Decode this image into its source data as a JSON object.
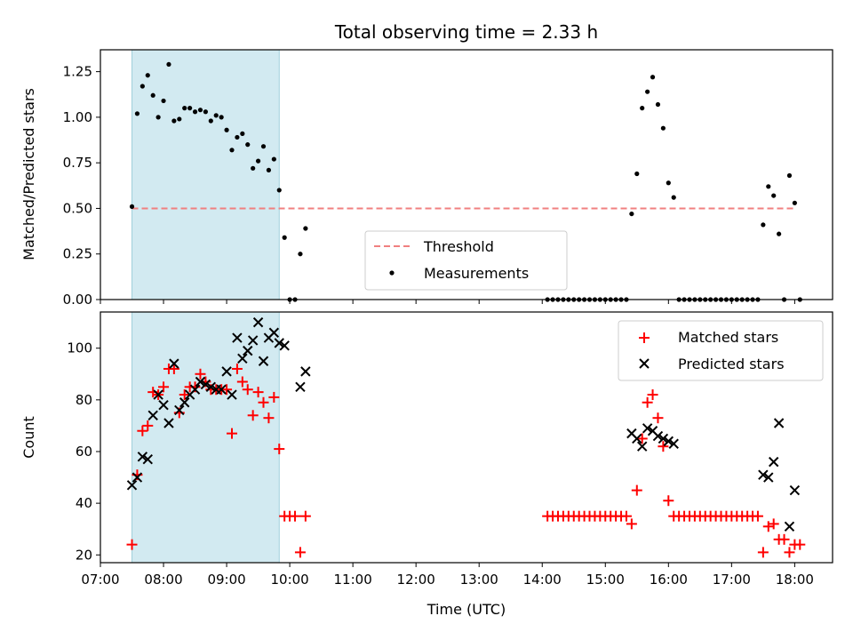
{
  "chart_data": [
    {
      "type": "scatter",
      "title": "Total observing time = 2.33 h",
      "xlabel": "",
      "ylabel": "Matched/Predicted stars",
      "xlim": [
        "07:00",
        "18:36"
      ],
      "ylim": [
        0,
        1.37
      ],
      "yticks": [
        "0.00",
        "0.25",
        "0.50",
        "0.75",
        "1.00",
        "1.25"
      ],
      "shaded_interval": [
        "07:30",
        "09:50"
      ],
      "threshold": {
        "name": "Threshold",
        "value": 0.5,
        "x": [
          "07:30",
          "18:00"
        ],
        "color": "#f08080"
      },
      "legend": {
        "placement": "lower-center",
        "entries": [
          "Threshold",
          "Measurements"
        ]
      },
      "series": [
        {
          "name": "Measurements",
          "color": "#000000",
          "points": [
            [
              "07:30",
              0.51
            ],
            [
              "07:35",
              1.02
            ],
            [
              "07:40",
              1.17
            ],
            [
              "07:45",
              1.23
            ],
            [
              "07:50",
              1.12
            ],
            [
              "07:55",
              1.0
            ],
            [
              "08:00",
              1.09
            ],
            [
              "08:05",
              1.29
            ],
            [
              "08:10",
              0.98
            ],
            [
              "08:15",
              0.99
            ],
            [
              "08:20",
              1.05
            ],
            [
              "08:25",
              1.05
            ],
            [
              "08:30",
              1.03
            ],
            [
              "08:35",
              1.04
            ],
            [
              "08:40",
              1.03
            ],
            [
              "08:45",
              0.98
            ],
            [
              "08:50",
              1.01
            ],
            [
              "08:55",
              1.0
            ],
            [
              "09:00",
              0.93
            ],
            [
              "09:05",
              0.82
            ],
            [
              "09:10",
              0.89
            ],
            [
              "09:15",
              0.91
            ],
            [
              "09:20",
              0.85
            ],
            [
              "09:25",
              0.72
            ],
            [
              "09:30",
              0.76
            ],
            [
              "09:35",
              0.84
            ],
            [
              "09:40",
              0.71
            ],
            [
              "09:45",
              0.77
            ],
            [
              "09:50",
              0.6
            ],
            [
              "09:55",
              0.34
            ],
            [
              "10:00",
              0.0
            ],
            [
              "10:05",
              0.0
            ],
            [
              "10:10",
              0.25
            ],
            [
              "10:15",
              0.39
            ],
            [
              "14:05",
              0.0
            ],
            [
              "14:10",
              0.0
            ],
            [
              "14:15",
              0.0
            ],
            [
              "14:20",
              0.0
            ],
            [
              "14:25",
              0.0
            ],
            [
              "14:30",
              0.0
            ],
            [
              "14:35",
              0.0
            ],
            [
              "14:40",
              0.0
            ],
            [
              "14:45",
              0.0
            ],
            [
              "14:50",
              0.0
            ],
            [
              "14:55",
              0.0
            ],
            [
              "15:00",
              0.0
            ],
            [
              "15:05",
              0.0
            ],
            [
              "15:10",
              0.0
            ],
            [
              "15:15",
              0.0
            ],
            [
              "15:20",
              0.0
            ],
            [
              "15:25",
              0.47
            ],
            [
              "15:30",
              0.69
            ],
            [
              "15:35",
              1.05
            ],
            [
              "15:40",
              1.14
            ],
            [
              "15:45",
              1.22
            ],
            [
              "15:50",
              1.07
            ],
            [
              "15:55",
              0.94
            ],
            [
              "16:00",
              0.64
            ],
            [
              "16:05",
              0.56
            ],
            [
              "16:10",
              0.0
            ],
            [
              "16:15",
              0.0
            ],
            [
              "16:20",
              0.0
            ],
            [
              "16:25",
              0.0
            ],
            [
              "16:30",
              0.0
            ],
            [
              "16:35",
              0.0
            ],
            [
              "16:40",
              0.0
            ],
            [
              "16:45",
              0.0
            ],
            [
              "16:50",
              0.0
            ],
            [
              "16:55",
              0.0
            ],
            [
              "17:00",
              0.0
            ],
            [
              "17:05",
              0.0
            ],
            [
              "17:10",
              0.0
            ],
            [
              "17:15",
              0.0
            ],
            [
              "17:20",
              0.0
            ],
            [
              "17:25",
              0.0
            ],
            [
              "17:30",
              0.41
            ],
            [
              "17:35",
              0.62
            ],
            [
              "17:40",
              0.57
            ],
            [
              "17:45",
              0.36
            ],
            [
              "17:50",
              0.0
            ],
            [
              "17:55",
              0.68
            ],
            [
              "18:00",
              0.53
            ],
            [
              "18:05",
              0.0
            ]
          ]
        }
      ]
    },
    {
      "type": "scatter",
      "title": "",
      "xlabel": "Time (UTC)",
      "ylabel": "Count",
      "xlim": [
        "07:00",
        "18:36"
      ],
      "ylim": [
        17,
        114
      ],
      "xticks": [
        "07:00",
        "08:00",
        "09:00",
        "10:00",
        "11:00",
        "12:00",
        "13:00",
        "14:00",
        "15:00",
        "16:00",
        "17:00",
        "18:00"
      ],
      "yticks": [
        "20",
        "40",
        "60",
        "80",
        "100"
      ],
      "shaded_interval": [
        "07:30",
        "09:50"
      ],
      "legend": {
        "placement": "upper-right",
        "entries": [
          "Matched stars",
          "Predicted stars"
        ]
      },
      "series": [
        {
          "name": "Matched stars",
          "marker": "plus",
          "color": "#ff0000",
          "points": [
            [
              "07:30",
              24
            ],
            [
              "07:35",
              51
            ],
            [
              "07:40",
              68
            ],
            [
              "07:45",
              70
            ],
            [
              "07:50",
              83
            ],
            [
              "07:55",
              82
            ],
            [
              "08:00",
              85
            ],
            [
              "08:05",
              92
            ],
            [
              "08:10",
              92
            ],
            [
              "08:15",
              75
            ],
            [
              "08:20",
              82
            ],
            [
              "08:25",
              85
            ],
            [
              "08:30",
              85
            ],
            [
              "08:35",
              90
            ],
            [
              "08:40",
              87
            ],
            [
              "08:45",
              84
            ],
            [
              "08:50",
              84
            ],
            [
              "08:55",
              84
            ],
            [
              "09:00",
              84
            ],
            [
              "09:05",
              67
            ],
            [
              "09:10",
              92
            ],
            [
              "09:15",
              87
            ],
            [
              "09:20",
              84
            ],
            [
              "09:25",
              74
            ],
            [
              "09:30",
              83
            ],
            [
              "09:35",
              79
            ],
            [
              "09:40",
              73
            ],
            [
              "09:45",
              81
            ],
            [
              "09:50",
              61
            ],
            [
              "09:55",
              35
            ],
            [
              "10:00",
              35
            ],
            [
              "10:05",
              35
            ],
            [
              "10:10",
              21
            ],
            [
              "10:15",
              35
            ],
            [
              "14:05",
              35
            ],
            [
              "14:10",
              35
            ],
            [
              "14:15",
              35
            ],
            [
              "14:20",
              35
            ],
            [
              "14:25",
              35
            ],
            [
              "14:30",
              35
            ],
            [
              "14:35",
              35
            ],
            [
              "14:40",
              35
            ],
            [
              "14:45",
              35
            ],
            [
              "14:50",
              35
            ],
            [
              "14:55",
              35
            ],
            [
              "15:00",
              35
            ],
            [
              "15:05",
              35
            ],
            [
              "15:10",
              35
            ],
            [
              "15:15",
              35
            ],
            [
              "15:20",
              35
            ],
            [
              "15:25",
              32
            ],
            [
              "15:30",
              45
            ],
            [
              "15:35",
              65
            ],
            [
              "15:40",
              79
            ],
            [
              "15:45",
              82
            ],
            [
              "15:50",
              73
            ],
            [
              "15:55",
              62
            ],
            [
              "16:00",
              41
            ],
            [
              "16:05",
              35
            ],
            [
              "16:10",
              35
            ],
            [
              "16:15",
              35
            ],
            [
              "16:20",
              35
            ],
            [
              "16:25",
              35
            ],
            [
              "16:30",
              35
            ],
            [
              "16:35",
              35
            ],
            [
              "16:40",
              35
            ],
            [
              "16:45",
              35
            ],
            [
              "16:50",
              35
            ],
            [
              "16:55",
              35
            ],
            [
              "17:00",
              35
            ],
            [
              "17:05",
              35
            ],
            [
              "17:10",
              35
            ],
            [
              "17:15",
              35
            ],
            [
              "17:20",
              35
            ],
            [
              "17:25",
              35
            ],
            [
              "17:30",
              21
            ],
            [
              "17:35",
              31
            ],
            [
              "17:40",
              32
            ],
            [
              "17:45",
              26
            ],
            [
              "17:50",
              26
            ],
            [
              "17:55",
              21
            ],
            [
              "18:00",
              24
            ],
            [
              "18:05",
              24
            ]
          ]
        },
        {
          "name": "Predicted stars",
          "marker": "x",
          "color": "#000000",
          "points": [
            [
              "07:30",
              47
            ],
            [
              "07:35",
              50
            ],
            [
              "07:40",
              58
            ],
            [
              "07:45",
              57
            ],
            [
              "07:50",
              74
            ],
            [
              "07:55",
              82
            ],
            [
              "08:00",
              78
            ],
            [
              "08:05",
              71
            ],
            [
              "08:10",
              94
            ],
            [
              "08:15",
              76
            ],
            [
              "08:20",
              79
            ],
            [
              "08:25",
              82
            ],
            [
              "08:30",
              84
            ],
            [
              "08:35",
              87
            ],
            [
              "08:40",
              86
            ],
            [
              "08:45",
              85
            ],
            [
              "08:50",
              84
            ],
            [
              "08:55",
              84
            ],
            [
              "09:00",
              91
            ],
            [
              "09:05",
              82
            ],
            [
              "09:10",
              104
            ],
            [
              "09:15",
              96
            ],
            [
              "09:20",
              99
            ],
            [
              "09:25",
              103
            ],
            [
              "09:30",
              110
            ],
            [
              "09:35",
              95
            ],
            [
              "09:40",
              104
            ],
            [
              "09:45",
              106
            ],
            [
              "09:50",
              102
            ],
            [
              "09:55",
              101
            ],
            [
              "10:10",
              85
            ],
            [
              "10:15",
              91
            ],
            [
              "15:25",
              67
            ],
            [
              "15:30",
              65
            ],
            [
              "15:35",
              62
            ],
            [
              "15:40",
              69
            ],
            [
              "15:45",
              68
            ],
            [
              "15:50",
              66
            ],
            [
              "15:55",
              65
            ],
            [
              "16:00",
              64
            ],
            [
              "16:05",
              63
            ],
            [
              "17:30",
              51
            ],
            [
              "17:35",
              50
            ],
            [
              "17:40",
              56
            ],
            [
              "17:45",
              71
            ],
            [
              "17:55",
              31
            ],
            [
              "18:00",
              45
            ]
          ]
        }
      ]
    }
  ]
}
